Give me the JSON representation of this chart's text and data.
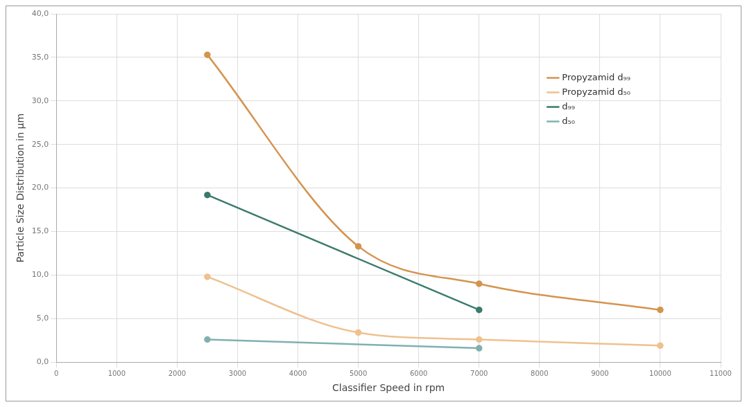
{
  "chart_data": {
    "type": "line",
    "xlabel": "Classifier Speed in rpm",
    "ylabel": "Particle Size Distribution in µm",
    "series": [
      {
        "name": "Propyzamid d₉₉",
        "color": "#d4944f",
        "x": [
          2500,
          5000,
          7000,
          10000
        ],
        "values": [
          35.3,
          13.3,
          9.0,
          6.0
        ]
      },
      {
        "name": "Propyzamid d₅₀",
        "color": "#eec18f",
        "x": [
          2500,
          5000,
          7000,
          10000
        ],
        "values": [
          9.8,
          3.4,
          2.6,
          1.9
        ]
      },
      {
        "name": "d₉₉",
        "color": "#3b7a6c",
        "x": [
          2500,
          7000
        ],
        "values": [
          19.2,
          6.0
        ]
      },
      {
        "name": "d₅₀",
        "color": "#80b0b0",
        "x": [
          2500,
          7000
        ],
        "values": [
          2.6,
          1.6
        ]
      }
    ],
    "xlim": [
      0,
      11000
    ],
    "xticks": [
      0,
      1000,
      2000,
      3000,
      4000,
      5000,
      6000,
      7000,
      8000,
      9000,
      10000,
      11000
    ],
    "ylim": [
      0,
      40
    ],
    "yticks": [
      {
        "value": 0,
        "label": "0,0"
      },
      {
        "value": 5,
        "label": "5,0"
      },
      {
        "value": 10,
        "label": "10,0"
      },
      {
        "value": 15,
        "label": "15,0"
      },
      {
        "value": 20,
        "label": "20,0"
      },
      {
        "value": 25,
        "label": "25,0"
      },
      {
        "value": 30,
        "label": "30,0"
      },
      {
        "value": 35,
        "label": "35,0"
      },
      {
        "value": 40,
        "label": "40,0"
      }
    ],
    "grid": true,
    "legend": "top right",
    "marker": "circle",
    "line_style": "solid"
  }
}
